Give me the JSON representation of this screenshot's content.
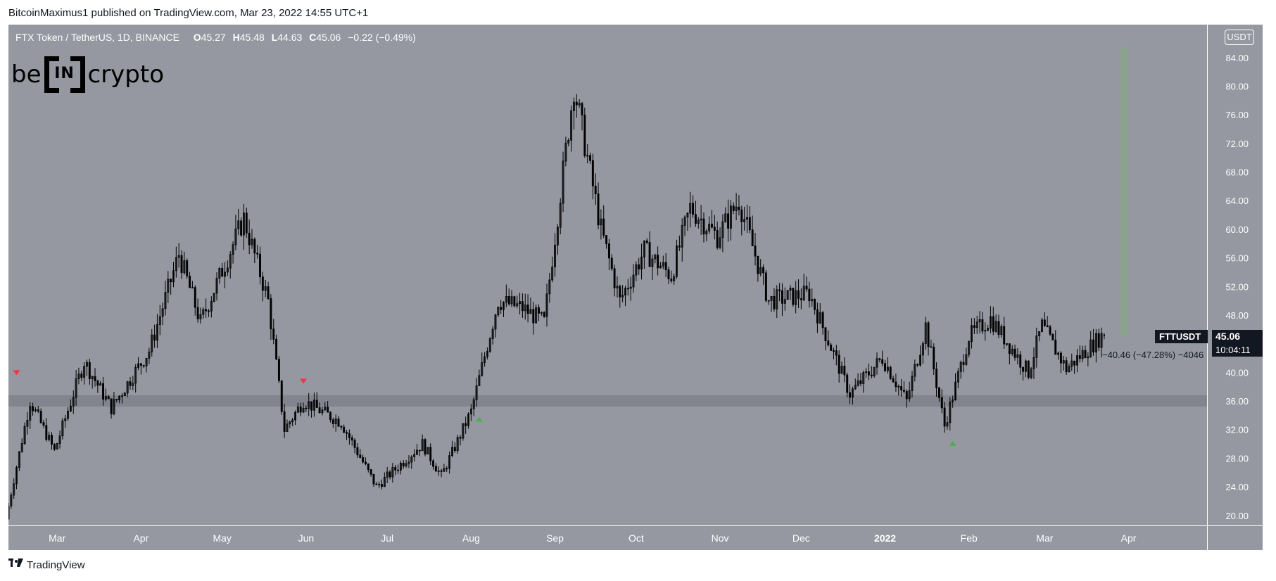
{
  "header": {
    "published_text": "BitcoinMaximus1 published on TradingView.com, Mar 23, 2022 14:55 UTC+1"
  },
  "legend": {
    "symbol_title": "FTX Token / TetherUS, 1D, BINANCE",
    "open_key": "O",
    "open_value": "45.27",
    "high_key": "H",
    "high_value": "45.48",
    "low_key": "L",
    "low_value": "44.63",
    "close_key": "C",
    "close_value": "45.06",
    "change_text": "−0.22 (−0.49%)"
  },
  "logo": {
    "prefix": "be",
    "box": "IN",
    "suffix": "crypto"
  },
  "currency_badge": "USDT",
  "price_tag": {
    "symbol": "FTTUSDT",
    "price": "45.06",
    "countdown": "10:04:11"
  },
  "measure_label": "−40.46 (−47.28%) −4046",
  "footer": {
    "mark": "𝟣𝟩",
    "label": "TradingView"
  },
  "colors": {
    "background": "#9598a1",
    "candle": "#000000",
    "support_zone": "#7d8089",
    "target_zone": "#89a389",
    "marker_down": "#f23645",
    "marker_up": "#4caf50"
  },
  "chart_data": {
    "type": "candlestick",
    "title": "FTX Token / TetherUS, 1D, BINANCE",
    "x_tick_labels": [
      "Mar",
      "Apr",
      "May",
      "Jun",
      "Jul",
      "Aug",
      "Sep",
      "Oct",
      "Nov",
      "Dec",
      "2022",
      "Feb",
      "Mar",
      "Apr"
    ],
    "x_tick_dates": [
      "2021-03-01",
      "2021-04-01",
      "2021-05-01",
      "2021-06-01",
      "2021-07-01",
      "2021-08-01",
      "2021-09-01",
      "2021-10-01",
      "2021-11-01",
      "2021-12-01",
      "2022-01-01",
      "2022-02-01",
      "2022-03-01",
      "2022-04-01"
    ],
    "y_tick_labels": [
      "20.00",
      "24.00",
      "28.00",
      "32.00",
      "36.00",
      "40.00",
      "44.00",
      "48.00",
      "52.00",
      "56.00",
      "60.00",
      "64.00",
      "68.00",
      "72.00",
      "76.00",
      "80.00",
      "84.00"
    ],
    "y_range": [
      18.6,
      88.6
    ],
    "x_range": [
      "2021-02-11",
      "2022-04-30"
    ],
    "price_key_points": [
      {
        "date": "2021-02-11",
        "price": 19.5
      },
      {
        "date": "2021-02-20",
        "price": 36.0
      },
      {
        "date": "2021-03-01",
        "price": 29.0
      },
      {
        "date": "2021-03-12",
        "price": 41.5
      },
      {
        "date": "2021-03-22",
        "price": 35.0
      },
      {
        "date": "2021-04-05",
        "price": 43.0
      },
      {
        "date": "2021-04-16",
        "price": 56.5
      },
      {
        "date": "2021-04-24",
        "price": 47.0
      },
      {
        "date": "2021-05-10",
        "price": 61.5
      },
      {
        "date": "2021-05-19",
        "price": 50.0
      },
      {
        "date": "2021-05-25",
        "price": 32.0
      },
      {
        "date": "2021-06-01",
        "price": 36.0
      },
      {
        "date": "2021-06-15",
        "price": 33.0
      },
      {
        "date": "2021-06-28",
        "price": 24.0
      },
      {
        "date": "2021-07-15",
        "price": 30.0
      },
      {
        "date": "2021-07-22",
        "price": 25.5
      },
      {
        "date": "2021-08-02",
        "price": 34.5
      },
      {
        "date": "2021-08-12",
        "price": 50.0
      },
      {
        "date": "2021-08-21",
        "price": 49.0
      },
      {
        "date": "2021-08-29",
        "price": 47.0
      },
      {
        "date": "2021-09-09",
        "price": 80.0
      },
      {
        "date": "2021-09-19",
        "price": 60.0
      },
      {
        "date": "2021-09-26",
        "price": 50.0
      },
      {
        "date": "2021-10-05",
        "price": 57.0
      },
      {
        "date": "2021-10-15",
        "price": 53.5
      },
      {
        "date": "2021-10-22",
        "price": 63.0
      },
      {
        "date": "2021-11-01",
        "price": 59.0
      },
      {
        "date": "2021-11-09",
        "price": 64.0
      },
      {
        "date": "2021-11-20",
        "price": 50.0
      },
      {
        "date": "2021-12-05",
        "price": 51.0
      },
      {
        "date": "2021-12-20",
        "price": 37.0
      },
      {
        "date": "2022-01-01",
        "price": 42.0
      },
      {
        "date": "2022-01-10",
        "price": 36.0
      },
      {
        "date": "2022-01-17",
        "price": 46.5
      },
      {
        "date": "2022-01-24",
        "price": 32.5
      },
      {
        "date": "2022-02-02",
        "price": 45.0
      },
      {
        "date": "2022-02-10",
        "price": 47.5
      },
      {
        "date": "2022-02-24",
        "price": 40.0
      },
      {
        "date": "2022-03-01",
        "price": 46.5
      },
      {
        "date": "2022-03-10",
        "price": 40.5
      },
      {
        "date": "2022-03-23",
        "price": 45.06
      }
    ],
    "last_bar": {
      "date": "2022-03-23",
      "open": 45.27,
      "high": 45.48,
      "low": 44.63,
      "close": 45.06
    },
    "support_zone": {
      "low": 35.2,
      "high": 36.8
    },
    "target_zone": {
      "start": "2022-03-29",
      "end": "2022-04-01",
      "low": 45.06,
      "high": 85.5
    },
    "markers": [
      {
        "date": "2021-02-14",
        "price": 40.0,
        "direction": "down",
        "color": "#f23645"
      },
      {
        "date": "2021-05-31",
        "price": 38.8,
        "direction": "down",
        "color": "#f23645"
      },
      {
        "date": "2021-08-04",
        "price": 33.4,
        "direction": "up",
        "color": "#4caf50"
      },
      {
        "date": "2022-01-26",
        "price": 30.0,
        "direction": "up",
        "color": "#4caf50"
      }
    ]
  }
}
